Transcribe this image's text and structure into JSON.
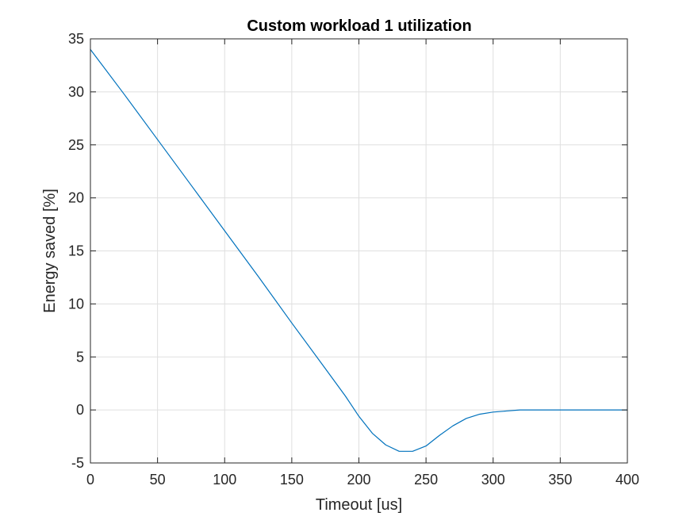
{
  "chart_data": {
    "type": "line",
    "title": "Custom workload 1 utilization",
    "xlabel": "Timeout [us]",
    "ylabel": "Energy saved [%]",
    "xlim": [
      0,
      400
    ],
    "ylim": [
      -5,
      35
    ],
    "xticks": [
      0,
      50,
      100,
      150,
      200,
      250,
      300,
      350,
      400
    ],
    "yticks": [
      -5,
      0,
      5,
      10,
      15,
      20,
      25,
      30,
      35
    ],
    "grid": true,
    "series": [
      {
        "color": "#0072BD",
        "x": [
          0,
          25,
          50,
          75,
          100,
          125,
          150,
          175,
          190,
          200,
          210,
          220,
          230,
          240,
          250,
          260,
          270,
          280,
          290,
          300,
          310,
          320,
          350,
          400
        ],
        "y": [
          34.0,
          29.8,
          25.5,
          21.2,
          16.9,
          12.6,
          8.2,
          3.9,
          1.3,
          -0.6,
          -2.2,
          -3.3,
          -3.9,
          -3.9,
          -3.4,
          -2.4,
          -1.5,
          -0.8,
          -0.4,
          -0.2,
          -0.1,
          0.0,
          0.0,
          0.0
        ]
      }
    ]
  }
}
